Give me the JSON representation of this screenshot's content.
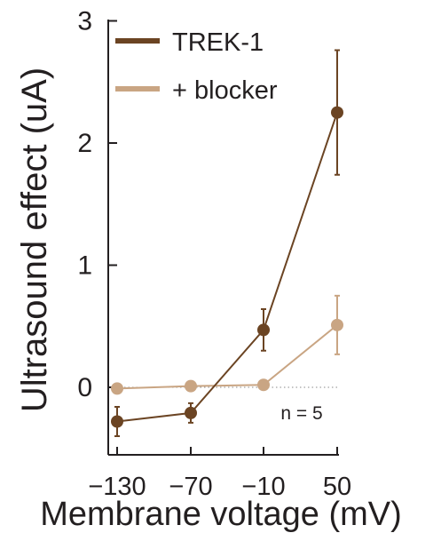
{
  "chart_data": {
    "type": "line",
    "title": "",
    "xlabel": "Membrane voltage (mV)",
    "ylabel": "Ultrasound effect (uA)",
    "x": [
      -130,
      -70,
      -10,
      50
    ],
    "x_tick_labels": [
      "−130",
      "−70",
      "−10",
      "50"
    ],
    "y_ticks": [
      0,
      1,
      2,
      3
    ],
    "y_tick_labels": [
      "0",
      "1",
      "2",
      "3"
    ],
    "xlim": [
      -130,
      50
    ],
    "ylim": [
      -0.5,
      3
    ],
    "grid": false,
    "legend_position": "top-left",
    "zero_line": "dotted",
    "annotation": "n = 5",
    "series": [
      {
        "name": "TREK-1",
        "color": "#6b4423",
        "values": [
          -0.28,
          -0.21,
          0.47,
          2.25
        ],
        "error": [
          0.12,
          0.08,
          0.17,
          0.51
        ]
      },
      {
        "name": "+ blocker",
        "color": "#c9a583",
        "values": [
          -0.01,
          0.01,
          0.02,
          0.51
        ],
        "error": [
          0.0,
          0.0,
          0.0,
          0.24
        ]
      }
    ]
  }
}
